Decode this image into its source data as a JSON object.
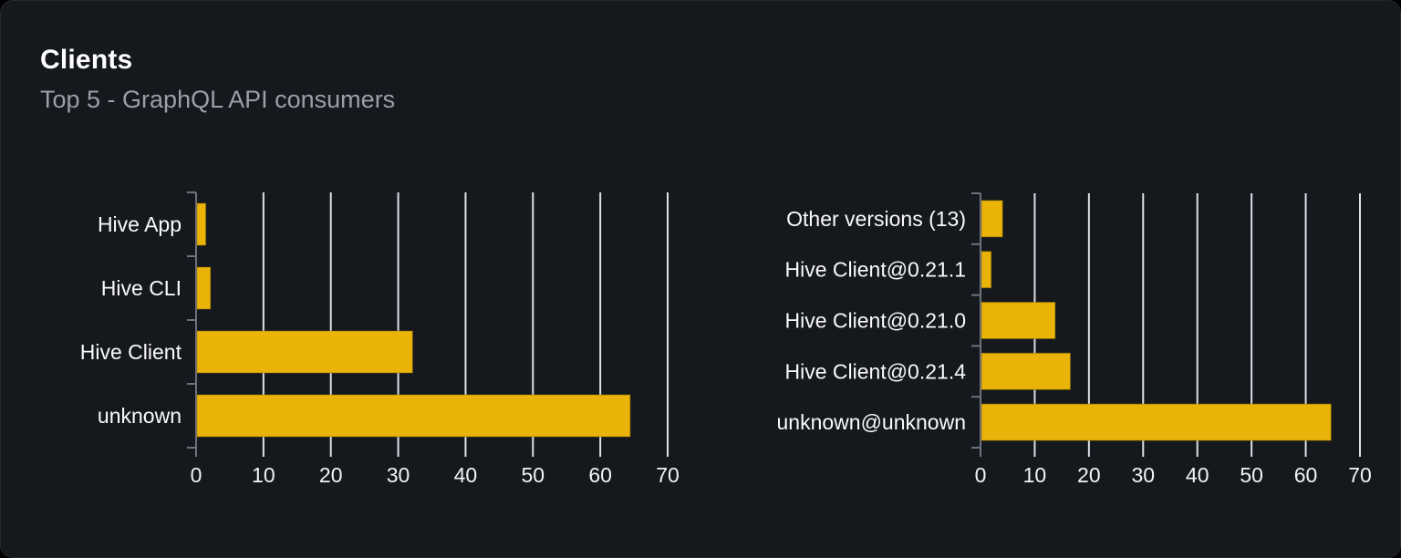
{
  "card": {
    "title": "Clients",
    "subtitle": "Top 5 - GraphQL API consumers"
  },
  "colors": {
    "page_bg": "#000000",
    "card_bg": "#15181d",
    "card_border": "#24272d",
    "title": "#ffffff",
    "subtitle": "#9aa0a8",
    "bar": "#eab308",
    "bar_stroke": "#8a6a06",
    "gridline": "#dde0e6",
    "axis": "#6e727c",
    "category_label": "#fafafa",
    "tick_label": "#f2f3f5"
  },
  "chart_data": [
    {
      "type": "bar",
      "orientation": "horizontal",
      "name": "clients-by-name",
      "categories": [
        "Hive App",
        "Hive CLI",
        "Hive Client",
        "unknown"
      ],
      "values": [
        1.3,
        2,
        32,
        64.3
      ],
      "xticks": [
        0,
        10,
        20,
        30,
        40,
        50,
        60,
        70
      ],
      "xlim": [
        0,
        70
      ],
      "xlabel": "",
      "ylabel": "",
      "grid": true,
      "legend": "none"
    },
    {
      "type": "bar",
      "orientation": "horizontal",
      "name": "clients-by-version",
      "categories": [
        "Other versions (13)",
        "Hive Client@0.21.1",
        "Hive Client@0.21.0",
        "Hive Client@0.21.4",
        "unknown@unknown"
      ],
      "values": [
        3.9,
        1.8,
        13.6,
        16.4,
        64.5
      ],
      "xticks": [
        0,
        10,
        20,
        30,
        40,
        50,
        60,
        70
      ],
      "xlim": [
        0,
        70
      ],
      "xlabel": "",
      "ylabel": "",
      "grid": true,
      "legend": "none"
    }
  ]
}
